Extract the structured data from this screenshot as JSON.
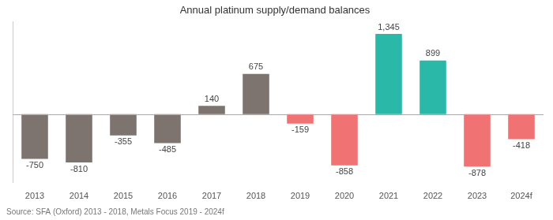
{
  "chart_data": {
    "type": "bar",
    "title": "Annual platinum supply/demand balances",
    "source": "Source: SFA (Oxford) 2013 - 2018, Metals Focus 2019 - 2024f",
    "categories": [
      "2013",
      "2014",
      "2015",
      "2016",
      "2017",
      "2018",
      "2019",
      "2020",
      "2021",
      "2022",
      "2023",
      "2024f"
    ],
    "values": [
      -750,
      -810,
      -355,
      -485,
      140,
      675,
      -159,
      -858,
      1345,
      899,
      -878,
      -418
    ],
    "value_labels": [
      "-750",
      "-810",
      "-355",
      "-485",
      "140",
      "675",
      "-159",
      "-858",
      "1,345",
      "899",
      "-878",
      "-418"
    ],
    "colors": [
      "#7d7470",
      "#7d7470",
      "#7d7470",
      "#7d7470",
      "#7d7470",
      "#7d7470",
      "#f07272",
      "#f07272",
      "#2ab8a8",
      "#2ab8a8",
      "#f07272",
      "#f07272"
    ],
    "ylim": [
      -1150,
      1550
    ],
    "grid": false,
    "data_labels": true,
    "tick_labels": "x"
  }
}
